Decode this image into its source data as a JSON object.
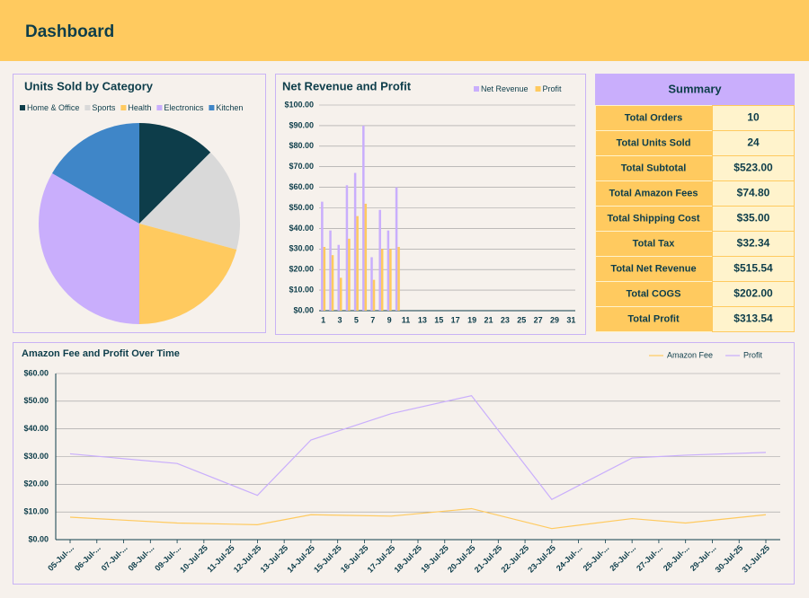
{
  "header": {
    "title": "Dashboard"
  },
  "chart_data": [
    {
      "type": "pie",
      "title": "Units Sold by Category",
      "categories": [
        "Home & Office",
        "Sports",
        "Health",
        "Electronics",
        "Kitchen"
      ],
      "values": [
        3,
        4,
        5,
        8,
        4
      ],
      "colors": [
        "#0d3d4a",
        "#d9d9d9",
        "#ffca5f",
        "#c9aefc",
        "#3f86c8"
      ],
      "legend": "top"
    },
    {
      "type": "bar",
      "title": "Net Revenue and Profit",
      "categories": [
        1,
        null,
        3,
        null,
        5,
        null,
        7,
        null,
        9,
        null,
        11,
        null,
        13,
        null,
        15,
        null,
        17,
        null,
        19,
        null,
        21,
        null,
        23,
        null,
        25,
        null,
        27,
        null,
        29,
        null,
        31
      ],
      "series": [
        {
          "name": "Net Revenue",
          "color": "#c9aefc",
          "values": [
            53,
            39,
            32,
            61,
            67,
            90,
            26,
            49,
            39,
            60,
            null,
            null,
            null,
            null,
            null,
            null,
            null,
            null,
            null,
            null,
            null,
            null,
            null,
            null,
            null,
            null,
            null,
            null,
            null,
            null,
            null
          ]
        },
        {
          "name": "Profit",
          "color": "#ffca5f",
          "values": [
            31,
            27,
            16,
            35,
            46,
            52,
            15,
            30,
            30,
            31,
            null,
            null,
            null,
            null,
            null,
            null,
            null,
            null,
            null,
            null,
            null,
            null,
            null,
            null,
            null,
            null,
            null,
            null,
            null,
            null,
            null
          ]
        }
      ],
      "ylim": [
        0,
        100
      ],
      "yticks": [
        {
          "value": 0,
          "label": "$0.00"
        },
        {
          "value": 10,
          "label": "$10.00"
        },
        {
          "value": 20,
          "label": "$20.00"
        },
        {
          "value": 30,
          "label": "$30.00"
        },
        {
          "value": 40,
          "label": "$40.00"
        },
        {
          "value": 50,
          "label": "$50.00"
        },
        {
          "value": 60,
          "label": "$60.00"
        },
        {
          "value": 70,
          "label": "$70.00"
        },
        {
          "value": 80,
          "label": "$80.00"
        },
        {
          "value": 90,
          "label": "$90.00"
        },
        {
          "value": 100,
          "label": "$100.00"
        }
      ],
      "grid": true,
      "legend": "top-right"
    },
    {
      "type": "line",
      "title": "Amazon Fee and Profit Over Time",
      "x": [
        5,
        9,
        12,
        14,
        17,
        20,
        23,
        26,
        28,
        31
      ],
      "series": [
        {
          "name": "Amazon Fee",
          "color": "#ffca5f",
          "values": [
            8.1,
            6,
            5.4,
            9,
            8.5,
            11.2,
            4,
            7.6,
            6,
            9
          ]
        },
        {
          "name": "Profit",
          "color": "#c9aefc",
          "values": [
            31,
            27.5,
            16,
            36,
            45.5,
            52,
            14.5,
            29.5,
            30.5,
            31.5
          ]
        }
      ],
      "xlim": [
        5,
        31
      ],
      "xticks": [
        {
          "value": 5,
          "label": "05-Jul-..."
        },
        {
          "value": 6,
          "label": "06-Jul-..."
        },
        {
          "value": 7,
          "label": "07-Jul-..."
        },
        {
          "value": 8,
          "label": "08-Jul-..."
        },
        {
          "value": 9,
          "label": "09-Jul-..."
        },
        {
          "value": 10,
          "label": "10-Jul-25"
        },
        {
          "value": 11,
          "label": "11-Jul-25"
        },
        {
          "value": 12,
          "label": "12-Jul-25"
        },
        {
          "value": 13,
          "label": "13-Jul-25"
        },
        {
          "value": 14,
          "label": "14-Jul-25"
        },
        {
          "value": 15,
          "label": "15-Jul-25"
        },
        {
          "value": 16,
          "label": "16-Jul-25"
        },
        {
          "value": 17,
          "label": "17-Jul-25"
        },
        {
          "value": 18,
          "label": "18-Jul-25"
        },
        {
          "value": 19,
          "label": "19-Jul-25"
        },
        {
          "value": 20,
          "label": "20-Jul-25"
        },
        {
          "value": 21,
          "label": "21-Jul-25"
        },
        {
          "value": 22,
          "label": "22-Jul-25"
        },
        {
          "value": 23,
          "label": "23-Jul-25"
        },
        {
          "value": 24,
          "label": "24-Jul-..."
        },
        {
          "value": 25,
          "label": "25-Jul-..."
        },
        {
          "value": 26,
          "label": "26-Jul-..."
        },
        {
          "value": 27,
          "label": "27-Jul-..."
        },
        {
          "value": 28,
          "label": "28-Jul-..."
        },
        {
          "value": 29,
          "label": "29-Jul-..."
        },
        {
          "value": 30,
          "label": "30-Jul-25"
        },
        {
          "value": 31,
          "label": "31-Jul-25"
        }
      ],
      "ylim": [
        0,
        60
      ],
      "yticks": [
        {
          "value": 0,
          "label": "$0.00"
        },
        {
          "value": 10,
          "label": "$10.00"
        },
        {
          "value": 20,
          "label": "$20.00"
        },
        {
          "value": 30,
          "label": "$30.00"
        },
        {
          "value": 40,
          "label": "$40.00"
        },
        {
          "value": 50,
          "label": "$50.00"
        },
        {
          "value": 60,
          "label": "$60.00"
        }
      ],
      "grid": true,
      "legend": "top-right"
    }
  ],
  "summary": {
    "title": "Summary",
    "rows": [
      [
        "Total Orders",
        "10"
      ],
      [
        "Total Units Sold",
        "24"
      ],
      [
        "Total Subtotal",
        "$523.00"
      ],
      [
        "Total Amazon Fees",
        "$74.80"
      ],
      [
        "Total Shipping Cost",
        "$35.00"
      ],
      [
        "Total Tax",
        "$32.34"
      ],
      [
        "Total Net Revenue",
        "$515.54"
      ],
      [
        "Total COGS",
        "$202.00"
      ],
      [
        "Total Profit",
        "$313.54"
      ]
    ]
  }
}
